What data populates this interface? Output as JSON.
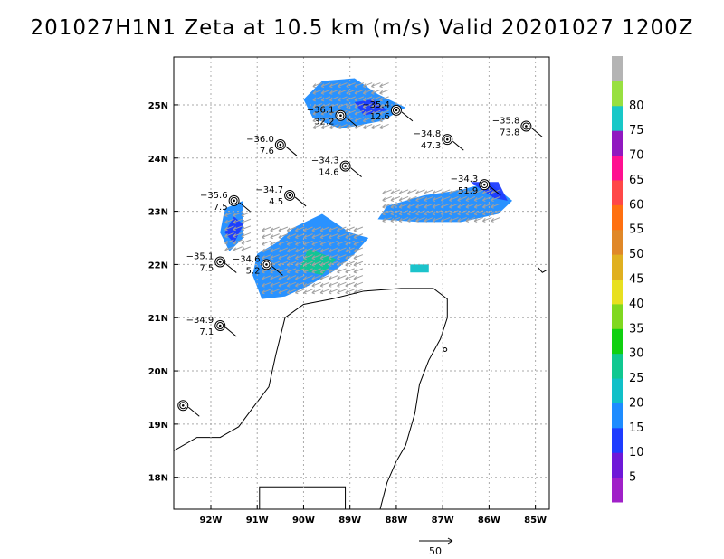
{
  "chart_data": {
    "type": "map",
    "title": "201027H1N1 Zeta at 10.5 km (m/s) Valid 20201027 1200Z",
    "x_ticks": [
      {
        "lon": -92,
        "label": "92W"
      },
      {
        "lon": -91,
        "label": "91W"
      },
      {
        "lon": -90,
        "label": "90W"
      },
      {
        "lon": -89,
        "label": "89W"
      },
      {
        "lon": -88,
        "label": "88W"
      },
      {
        "lon": -87,
        "label": "87W"
      },
      {
        "lon": -86,
        "label": "86W"
      },
      {
        "lon": -85,
        "label": "85W"
      }
    ],
    "y_ticks": [
      {
        "lat": 18,
        "label": "18N"
      },
      {
        "lat": 19,
        "label": "19N"
      },
      {
        "lat": 20,
        "label": "20N"
      },
      {
        "lat": 21,
        "label": "21N"
      },
      {
        "lat": 22,
        "label": "22N"
      },
      {
        "lat": 23,
        "label": "23N"
      },
      {
        "lat": 24,
        "label": "24N"
      },
      {
        "lat": 25,
        "label": "25N"
      }
    ],
    "xlim": [
      -92.8,
      -84.7
    ],
    "ylim": [
      17.4,
      25.9
    ],
    "grid": true,
    "colorbar": {
      "labels": [
        "5",
        "10",
        "15",
        "20",
        "25",
        "30",
        "35",
        "40",
        "45",
        "50",
        "55",
        "60",
        "65",
        "70",
        "75",
        "80"
      ],
      "colors": [
        "#a020c8",
        "#6e18d8",
        "#1e3cff",
        "#1e8cff",
        "#10c0c8",
        "#10c890",
        "#10d010",
        "#80d820",
        "#e8e020",
        "#e0b020",
        "#e08828",
        "#ff7010",
        "#ff4848",
        "#ff1090",
        "#9018c0",
        "#18c8c8",
        "#98e040",
        "#b4b4b4"
      ]
    },
    "stations": [
      {
        "lon": -89.2,
        "lat": 24.8,
        "temp": "−36.1",
        "speed": "32.2"
      },
      {
        "lon": -88.0,
        "lat": 24.9,
        "temp": "−35.4",
        "speed": "12.6"
      },
      {
        "lon": -85.2,
        "lat": 24.6,
        "temp": "−35.8",
        "speed": "73.8"
      },
      {
        "lon": -90.5,
        "lat": 24.25,
        "temp": "−36.0",
        "speed": "7.6"
      },
      {
        "lon": -89.1,
        "lat": 23.85,
        "temp": "−34.3",
        "speed": "14.6"
      },
      {
        "lon": -86.9,
        "lat": 24.35,
        "temp": "−34.8",
        "speed": "47.3"
      },
      {
        "lon": -86.1,
        "lat": 23.5,
        "temp": "−34.3",
        "speed": "51.9"
      },
      {
        "lon": -91.5,
        "lat": 23.2,
        "temp": "−35.6",
        "speed": "7.5"
      },
      {
        "lon": -90.3,
        "lat": 23.3,
        "temp": "−34.7",
        "speed": "4.5"
      },
      {
        "lon": -91.8,
        "lat": 22.05,
        "temp": "−35.1",
        "speed": "7.5"
      },
      {
        "lon": -90.8,
        "lat": 22.0,
        "temp": "−34.6",
        "speed": "5.2"
      },
      {
        "lon": -91.8,
        "lat": 20.85,
        "temp": "−34.9",
        "speed": "7.1"
      },
      {
        "lon": -92.6,
        "lat": 19.35,
        "temp": "",
        "speed": ""
      }
    ],
    "reference_vector": {
      "label": "50"
    }
  }
}
